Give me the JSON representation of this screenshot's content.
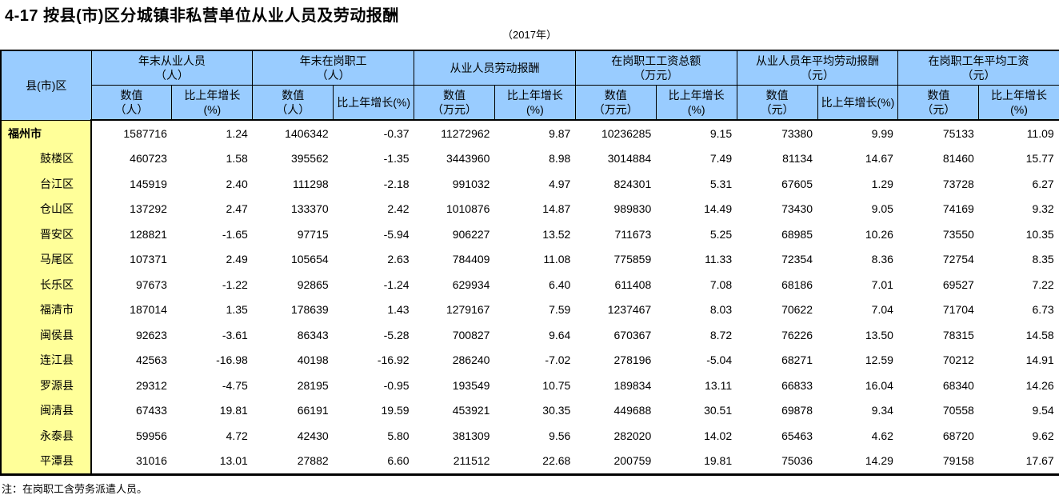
{
  "colors": {
    "header_bg": "#99CCFF",
    "row_label_bg": "#FFFF99",
    "border": "#000000"
  },
  "page": {
    "title": "4-17 按县(市)区分城镇非私营单位从业人员及劳动报酬",
    "subtitle": "（2017年）",
    "note": "注：在岗职工含劳务派遣人员。"
  },
  "table": {
    "corner_header": "县(市)区",
    "groups": [
      {
        "line1": "年末从业人员",
        "line2": "（人）"
      },
      {
        "line1": "年末在岗职工",
        "line2": "（人）"
      },
      {
        "line1": "从业人员劳动报酬",
        "line2": ""
      },
      {
        "line1": "在岗职工工资总额",
        "line2": "（万元）"
      },
      {
        "line1": "从业人员年平均劳动报酬",
        "line2": "（元）"
      },
      {
        "line1": "在岗职工年平均工资",
        "line2": "（元）"
      }
    ],
    "subheaders": [
      {
        "line1": "数值",
        "line2": "（人）"
      },
      {
        "line1": "比上年增长",
        "line2": "(%)"
      },
      {
        "line1": "数值",
        "line2": "（人）"
      },
      {
        "line1": "比上年增长(%)",
        "line2": ""
      },
      {
        "line1": "数值",
        "line2": "（万元）"
      },
      {
        "line1": "比上年增长",
        "line2": "(%)"
      },
      {
        "line1": "数值",
        "line2": "（万元）"
      },
      {
        "line1": "比上年增长",
        "line2": "(%)"
      },
      {
        "line1": "数值",
        "line2": "（元）"
      },
      {
        "line1": "比上年增长(%)",
        "line2": ""
      },
      {
        "line1": "数值",
        "line2": "（元）"
      },
      {
        "line1": "比上年增长",
        "line2": "(%)"
      }
    ],
    "rows": [
      {
        "name": "福州市",
        "total": true,
        "values": [
          "1587716",
          "1.24",
          "1406342",
          "-0.37",
          "11272962",
          "9.87",
          "10236285",
          "9.15",
          "73380",
          "9.99",
          "75133",
          "11.09"
        ]
      },
      {
        "name": "鼓楼区",
        "total": false,
        "values": [
          "460723",
          "1.58",
          "395562",
          "-1.35",
          "3443960",
          "8.98",
          "3014884",
          "7.49",
          "81134",
          "14.67",
          "81460",
          "15.77"
        ]
      },
      {
        "name": "台江区",
        "total": false,
        "values": [
          "145919",
          "2.40",
          "111298",
          "-2.18",
          "991032",
          "4.97",
          "824301",
          "5.31",
          "67605",
          "1.29",
          "73728",
          "6.27"
        ]
      },
      {
        "name": "仓山区",
        "total": false,
        "values": [
          "137292",
          "2.47",
          "133370",
          "2.42",
          "1010876",
          "14.87",
          "989830",
          "14.49",
          "73430",
          "9.05",
          "74169",
          "9.32"
        ]
      },
      {
        "name": "晋安区",
        "total": false,
        "values": [
          "128821",
          "-1.65",
          "97715",
          "-5.94",
          "906227",
          "13.52",
          "711673",
          "5.25",
          "68985",
          "10.26",
          "73550",
          "10.35"
        ]
      },
      {
        "name": "马尾区",
        "total": false,
        "values": [
          "107371",
          "2.49",
          "105654",
          "2.63",
          "784409",
          "11.08",
          "775859",
          "11.33",
          "72354",
          "8.36",
          "72754",
          "8.35"
        ]
      },
      {
        "name": "长乐区",
        "total": false,
        "values": [
          "97673",
          "-1.22",
          "92865",
          "-1.24",
          "629934",
          "6.40",
          "611408",
          "7.08",
          "68186",
          "7.01",
          "69527",
          "7.22"
        ]
      },
      {
        "name": "福清市",
        "total": false,
        "values": [
          "187014",
          "1.35",
          "178639",
          "1.43",
          "1279167",
          "7.59",
          "1237467",
          "8.03",
          "70622",
          "7.04",
          "71704",
          "6.73"
        ]
      },
      {
        "name": "闽侯县",
        "total": false,
        "values": [
          "92623",
          "-3.61",
          "86343",
          "-5.28",
          "700827",
          "9.64",
          "670367",
          "8.72",
          "76226",
          "13.50",
          "78315",
          "14.58"
        ]
      },
      {
        "name": "连江县",
        "total": false,
        "values": [
          "42563",
          "-16.98",
          "40198",
          "-16.92",
          "286240",
          "-7.02",
          "278196",
          "-5.04",
          "68271",
          "12.59",
          "70212",
          "14.91"
        ]
      },
      {
        "name": "罗源县",
        "total": false,
        "values": [
          "29312",
          "-4.75",
          "28195",
          "-0.95",
          "193549",
          "10.75",
          "189834",
          "13.11",
          "66833",
          "16.04",
          "68340",
          "14.26"
        ]
      },
      {
        "name": "闽清县",
        "total": false,
        "values": [
          "67433",
          "19.81",
          "66191",
          "19.59",
          "453921",
          "30.35",
          "449688",
          "30.51",
          "69878",
          "9.34",
          "70558",
          "9.54"
        ]
      },
      {
        "name": "永泰县",
        "total": false,
        "values": [
          "59956",
          "4.72",
          "42430",
          "5.80",
          "381309",
          "9.56",
          "282020",
          "14.02",
          "65463",
          "4.62",
          "68720",
          "9.62"
        ]
      },
      {
        "name": "平潭县",
        "total": false,
        "values": [
          "31016",
          "13.01",
          "27882",
          "6.60",
          "211512",
          "22.68",
          "200759",
          "19.81",
          "75036",
          "14.29",
          "79158",
          "17.67"
        ]
      }
    ]
  }
}
